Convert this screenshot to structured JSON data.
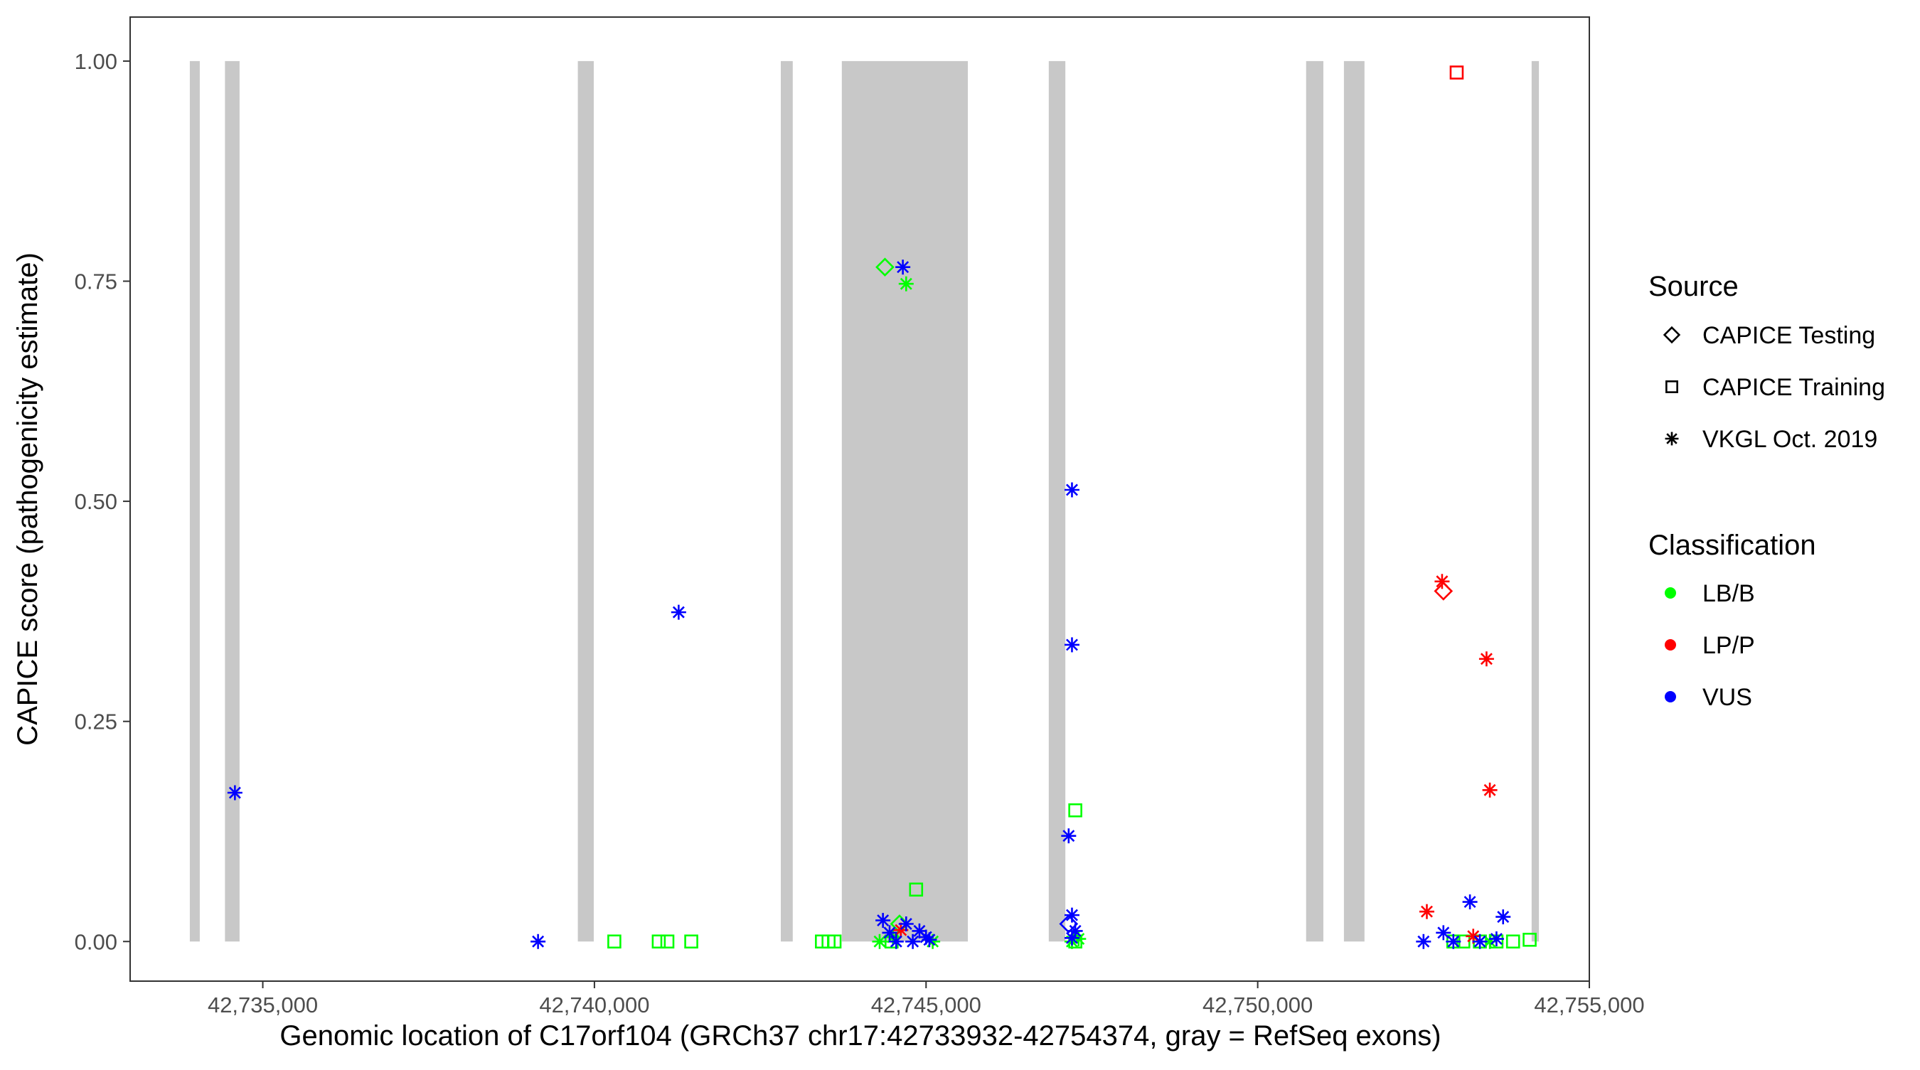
{
  "chart_data": {
    "type": "scatter",
    "title": "",
    "xlabel": "Genomic location of C17orf104 (GRCh37 chr17:42733932-42754374, gray = RefSeq exons)",
    "ylabel": "CAPICE score (pathogenicity estimate)",
    "xlim": [
      42733000,
      42755000
    ],
    "ylim": [
      -0.045,
      1.05
    ],
    "x_ticks": [
      42735000,
      42740000,
      42745000,
      42750000,
      42755000
    ],
    "x_tick_labels": [
      "42,735,000",
      "42,740,000",
      "42,745,000",
      "42,750,000",
      "42,755,000"
    ],
    "y_ticks": [
      0,
      0.25,
      0.5,
      0.75,
      1.0
    ],
    "y_tick_labels": [
      "0.00",
      "0.25",
      "0.50",
      "0.75",
      "1.00"
    ],
    "grid": false,
    "exons": [
      [
        42733900,
        42734050
      ],
      [
        42734430,
        42734650
      ],
      [
        42739750,
        42739990
      ],
      [
        42742810,
        42742990
      ],
      [
        42743730,
        42745630
      ],
      [
        42746850,
        42747100
      ],
      [
        42750730,
        42750990
      ],
      [
        42751300,
        42751610
      ],
      [
        42754130,
        42754240
      ]
    ],
    "legend": {
      "position": "right",
      "source_title": "Source",
      "source_items": [
        {
          "label": "CAPICE Testing",
          "shape": "diamond"
        },
        {
          "label": "CAPICE Training",
          "shape": "square"
        },
        {
          "label": "VKGL Oct. 2019",
          "shape": "asterisk"
        }
      ],
      "classification_title": "Classification",
      "classification_items": [
        {
          "label": "LB/B",
          "color": "#00FF00"
        },
        {
          "label": "LP/P",
          "color": "#FF0000"
        },
        {
          "label": "VUS",
          "color": "#0000FF"
        }
      ]
    },
    "colors": {
      "LB/B": "#00FF00",
      "LP/P": "#FF0000",
      "VUS": "#0000FF"
    },
    "series": [
      {
        "source": "CAPICE Testing",
        "class": "LB/B",
        "points": [
          [
            42744380,
            0.766
          ],
          [
            42744600,
            0.02
          ]
        ]
      },
      {
        "source": "CAPICE Testing",
        "class": "LP/P",
        "points": [
          [
            42752800,
            0.398
          ]
        ]
      },
      {
        "source": "CAPICE Testing",
        "class": "VUS",
        "points": [
          [
            42747150,
            0.02
          ]
        ]
      },
      {
        "source": "CAPICE Training",
        "class": "LB/B",
        "points": [
          [
            42740300,
            0.0
          ],
          [
            42740970,
            0.0
          ],
          [
            42741100,
            0.0
          ],
          [
            42741460,
            0.0
          ],
          [
            42743430,
            0.0
          ],
          [
            42743530,
            0.0
          ],
          [
            42743620,
            0.0
          ],
          [
            42744480,
            0.0
          ],
          [
            42744850,
            0.059
          ],
          [
            42747250,
            0.149
          ],
          [
            42747250,
            0.0
          ],
          [
            42752950,
            0.0
          ],
          [
            42753100,
            0.0
          ],
          [
            42753350,
            0.0
          ],
          [
            42753600,
            0.0
          ],
          [
            42753850,
            0.0
          ],
          [
            42754100,
            0.002
          ]
        ]
      },
      {
        "source": "CAPICE Training",
        "class": "LP/P",
        "points": [
          [
            42753000,
            0.987
          ]
        ]
      },
      {
        "source": "VKGL Oct. 2019",
        "class": "LB/B",
        "points": [
          [
            42744700,
            0.747
          ],
          [
            42744300,
            0.0
          ],
          [
            42744500,
            0.005
          ],
          [
            42745100,
            0.0
          ],
          [
            42747200,
            0.0
          ],
          [
            42747300,
            0.003
          ],
          [
            42753500,
            0.0
          ]
        ]
      },
      {
        "source": "VKGL Oct. 2019",
        "class": "LP/P",
        "points": [
          [
            42752780,
            0.409
          ],
          [
            42753450,
            0.321
          ],
          [
            42753500,
            0.172
          ],
          [
            42752550,
            0.034
          ],
          [
            42753250,
            0.006
          ],
          [
            42744620,
            0.013
          ]
        ]
      },
      {
        "source": "VKGL Oct. 2019",
        "class": "VUS",
        "points": [
          [
            42734580,
            0.169
          ],
          [
            42739150,
            0.0
          ],
          [
            42741270,
            0.374
          ],
          [
            42744650,
            0.766
          ],
          [
            42747200,
            0.513
          ],
          [
            42747200,
            0.337
          ],
          [
            42747150,
            0.12
          ],
          [
            42747200,
            0.03
          ],
          [
            42747250,
            0.012
          ],
          [
            42747200,
            0.004
          ],
          [
            42744350,
            0.024
          ],
          [
            42744450,
            0.01
          ],
          [
            42744700,
            0.02
          ],
          [
            42744900,
            0.012
          ],
          [
            42745000,
            0.005
          ],
          [
            42744550,
            0.0
          ],
          [
            42744800,
            0.0
          ],
          [
            42745050,
            0.002
          ],
          [
            42752500,
            0.0
          ],
          [
            42752800,
            0.01
          ],
          [
            42753200,
            0.045
          ],
          [
            42753350,
            0.0
          ],
          [
            42753600,
            0.003
          ],
          [
            42753700,
            0.028
          ],
          [
            42752950,
            0.0
          ]
        ]
      }
    ]
  }
}
